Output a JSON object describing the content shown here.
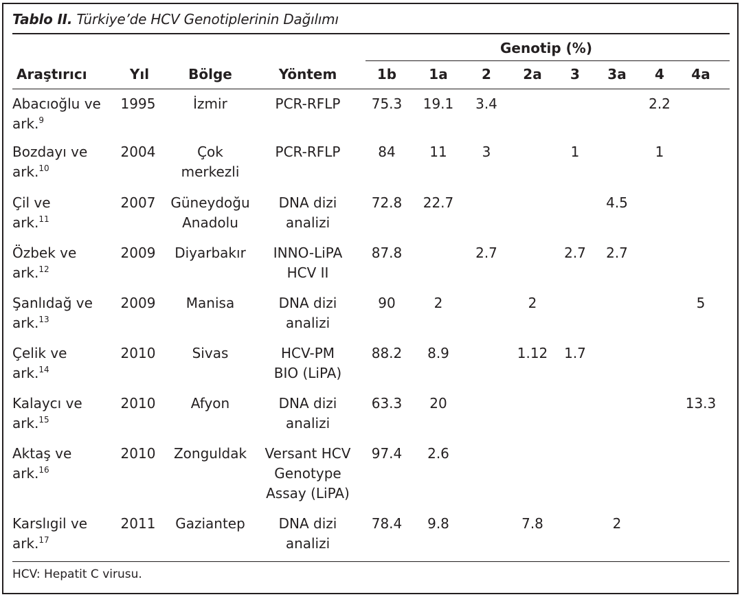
{
  "caption": {
    "label": "Tablo II.",
    "title": "Türkiye’de HCV Genotiplerinin Dağılımı"
  },
  "group_header": "Genotip (%)",
  "headers": {
    "researcher": "Araştırıcı",
    "year": "Yıl",
    "region": "Bölge",
    "method": "Yöntem",
    "genotypes": [
      "1b",
      "1a",
      "2",
      "2a",
      "3",
      "3a",
      "4",
      "4a"
    ]
  },
  "rows": [
    {
      "researcher": [
        "Abacıoğlu ve",
        "ark."
      ],
      "ref": "9",
      "year": "1995",
      "region": [
        "İzmir"
      ],
      "method": [
        "PCR-RFLP"
      ],
      "values": [
        "75.3",
        "19.1",
        "3.4",
        "",
        "",
        "",
        "2.2",
        ""
      ]
    },
    {
      "researcher": [
        "Bozdayı ve",
        "ark."
      ],
      "ref": "10",
      "year": "2004",
      "region": [
        "Çok",
        "merkezli"
      ],
      "method": [
        "PCR-RFLP"
      ],
      "values": [
        "84",
        "11",
        "3",
        "",
        "1",
        "",
        "1",
        ""
      ]
    },
    {
      "researcher": [
        "Çil ve",
        "ark."
      ],
      "ref": "11",
      "year": "2007",
      "region": [
        "Güneydoğu",
        "Anadolu"
      ],
      "method": [
        "DNA dizi",
        "analizi"
      ],
      "values": [
        "72.8",
        "22.7",
        "",
        "",
        "",
        "4.5",
        "",
        ""
      ]
    },
    {
      "researcher": [
        "Özbek ve",
        "ark."
      ],
      "ref": "12",
      "year": "2009",
      "region": [
        "Diyarbakır"
      ],
      "method": [
        "INNO-LiPA",
        "HCV II"
      ],
      "values": [
        "87.8",
        "",
        "2.7",
        "",
        "2.7",
        "2.7",
        "",
        ""
      ]
    },
    {
      "researcher": [
        "Şanlıdağ ve",
        "ark."
      ],
      "ref": "13",
      "year": "2009",
      "region": [
        "Manisa"
      ],
      "method": [
        "DNA dizi",
        "analizi"
      ],
      "values": [
        "90",
        "2",
        "",
        "2",
        "",
        "",
        "",
        "5"
      ]
    },
    {
      "researcher": [
        "Çelik ve",
        "ark."
      ],
      "ref": "14",
      "year": "2010",
      "region": [
        "Sivas"
      ],
      "method": [
        "HCV-PM",
        "BIO (LiPA)"
      ],
      "values": [
        "88.2",
        "8.9",
        "",
        "1.12",
        "1.7",
        "",
        "",
        ""
      ]
    },
    {
      "researcher": [
        "Kalaycı ve",
        "ark."
      ],
      "ref": "15",
      "year": "2010",
      "region": [
        "Afyon"
      ],
      "method": [
        "DNA dizi",
        "analizi"
      ],
      "values": [
        "63.3",
        "20",
        "",
        "",
        "",
        "",
        "",
        "13.3"
      ]
    },
    {
      "researcher": [
        "Aktaş ve",
        "ark."
      ],
      "ref": "16",
      "year": "2010",
      "region": [
        "Zonguldak"
      ],
      "method": [
        "Versant HCV",
        "Genotype",
        "Assay (LiPA)"
      ],
      "values": [
        "97.4",
        "2.6",
        "",
        "",
        "",
        "",
        "",
        ""
      ]
    },
    {
      "researcher": [
        "Karslıgil ve",
        "ark."
      ],
      "ref": "17",
      "year": "2011",
      "region": [
        "Gaziantep"
      ],
      "method": [
        "DNA dizi",
        "analizi"
      ],
      "values": [
        "78.4",
        "9.8",
        "",
        "7.8",
        "",
        "2",
        "",
        ""
      ]
    }
  ],
  "footnote": "HCV: Hepatit C virusu."
}
